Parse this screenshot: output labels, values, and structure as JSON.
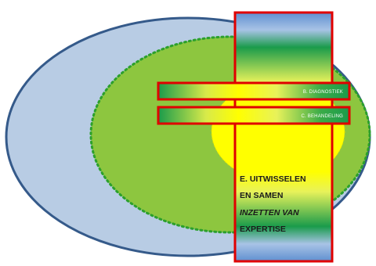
{
  "diagram": {
    "bars": [
      {
        "id": "diagnostiek",
        "label": "B. DIAGNOSTIEK"
      },
      {
        "id": "behandeling",
        "label": "C. BEHANDELING"
      }
    ],
    "column": {
      "lines": [
        {
          "text": "E. UITWISSELEN",
          "italic": false
        },
        {
          "text": "EN SAMEN",
          "italic": false
        },
        {
          "text": "INZETTEN VAN",
          "italic": true
        },
        {
          "text": "EXPERTISE",
          "italic": false
        }
      ]
    },
    "colors": {
      "outer_fill": "#b8cce4",
      "outer_stroke": "#355a8a",
      "middle_fill": "#8dc63f",
      "middle_stroke": "#2ca02c",
      "inner_fill": "#ffff00",
      "border_red": "#e00000",
      "blue": "#6e98cc",
      "green": "#1a9b4b",
      "yellow": "#ffff00"
    }
  }
}
